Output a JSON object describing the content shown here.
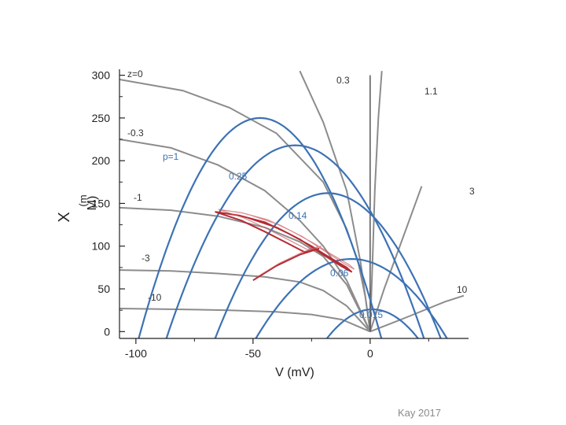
{
  "chart_data": {
    "type": "line",
    "xlabel": "V (mV)",
    "ylabel_parts": [
      "X",
      "(m",
      "M)"
    ],
    "xlim": [
      -107,
      42
    ],
    "ylim": [
      -8,
      307
    ],
    "x_ticks": [
      -100,
      -50,
      0
    ],
    "y_ticks": [
      0,
      50,
      100,
      150,
      200,
      250,
      300
    ],
    "grid": false,
    "colors": {
      "z_curve": "#8c8c8c",
      "p_curve": "#3d72b4",
      "trajectory": "#b32c33",
      "axis": "#222222"
    },
    "z_curves": [
      {
        "label": "z=0",
        "points": [
          [
            -107,
            295
          ],
          [
            -80,
            282
          ],
          [
            -60,
            262
          ],
          [
            -40,
            232
          ],
          [
            -20,
            175
          ],
          [
            -10,
            120
          ],
          [
            -5,
            80
          ],
          [
            -2,
            40
          ],
          [
            0,
            0
          ]
        ]
      },
      {
        "label": "-0.3",
        "points": [
          [
            -107,
            225
          ],
          [
            -85,
            215
          ],
          [
            -65,
            195
          ],
          [
            -45,
            165
          ],
          [
            -30,
            130
          ],
          [
            -20,
            100
          ],
          [
            -10,
            60
          ],
          [
            0,
            0
          ]
        ]
      },
      {
        "label": "-1",
        "points": [
          [
            -107,
            145
          ],
          [
            -85,
            142
          ],
          [
            -65,
            135
          ],
          [
            -45,
            122
          ],
          [
            -30,
            105
          ],
          [
            -20,
            88
          ],
          [
            -10,
            55
          ],
          [
            0,
            0
          ]
        ]
      },
      {
        "label": "-3",
        "points": [
          [
            -107,
            72
          ],
          [
            -85,
            71
          ],
          [
            -65,
            68
          ],
          [
            -45,
            64
          ],
          [
            -30,
            58
          ],
          [
            -20,
            48
          ],
          [
            -10,
            30
          ],
          [
            0,
            0
          ]
        ]
      },
      {
        "label": "-10",
        "points": [
          [
            -107,
            27
          ],
          [
            -80,
            26
          ],
          [
            -60,
            25
          ],
          [
            -40,
            23
          ],
          [
            -25,
            20
          ],
          [
            -12,
            14
          ],
          [
            0,
            0
          ]
        ]
      },
      {
        "label": "0.3",
        "points": [
          [
            0,
            0
          ],
          [
            -4,
            80
          ],
          [
            -10,
            165
          ],
          [
            -20,
            245
          ],
          [
            -30,
            305
          ]
        ]
      },
      {
        "label": "1.1",
        "points": [
          [
            0,
            0
          ],
          [
            1,
            80
          ],
          [
            2,
            165
          ],
          [
            3.5,
            250
          ],
          [
            5,
            305
          ]
        ]
      },
      {
        "label": "3",
        "points": [
          [
            0,
            0
          ],
          [
            6,
            50
          ],
          [
            14,
            110
          ],
          [
            22,
            170
          ]
        ]
      },
      {
        "label": "10",
        "points": [
          [
            0,
            0
          ],
          [
            14,
            15
          ],
          [
            32,
            35
          ],
          [
            40,
            42
          ]
        ]
      }
    ],
    "vertical_line": {
      "x": 0,
      "y_top": 300
    },
    "p_curves": [
      {
        "label": "p=1",
        "peak_x": -47,
        "half_width": 51,
        "peak_y": 250
      },
      {
        "label": "0.25",
        "peak_x": -32,
        "half_width": 54,
        "peak_y": 218
      },
      {
        "label": "0.14",
        "peak_x": -18,
        "half_width": 47,
        "peak_y": 162
      },
      {
        "label": "0.06",
        "peak_x": -8,
        "half_width": 39,
        "peak_y": 85
      },
      {
        "label": "0.015",
        "peak_x": 1,
        "half_width": 17,
        "peak_y": 26
      }
    ],
    "trajectory": {
      "points": [
        [
          -50,
          60
        ],
        [
          -40,
          77
        ],
        [
          -30,
          90
        ],
        [
          -22,
          97
        ],
        [
          -28,
          93
        ],
        [
          -35,
          103
        ],
        [
          -45,
          117
        ],
        [
          -55,
          130
        ],
        [
          -66,
          140
        ],
        [
          -56,
          136
        ],
        [
          -45,
          128
        ],
        [
          -35,
          115
        ],
        [
          -25,
          100
        ],
        [
          -18,
          88
        ],
        [
          -10,
          75
        ],
        [
          -8,
          70
        ],
        [
          -12,
          76
        ],
        [
          -20,
          90
        ],
        [
          -30,
          108
        ],
        [
          -40,
          122
        ],
        [
          -52,
          133
        ]
      ]
    }
  },
  "credit": "Kay 2017"
}
